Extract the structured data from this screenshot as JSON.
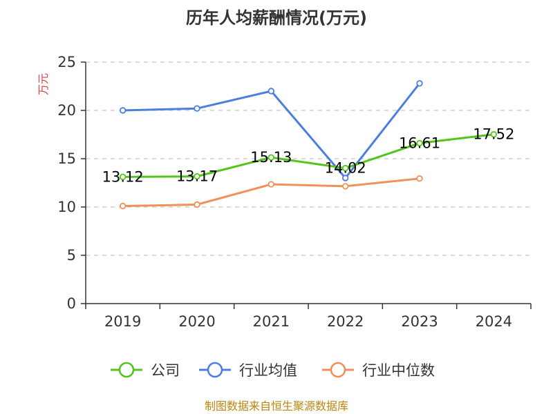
{
  "chart_data": {
    "type": "line",
    "title": "历年人均薪酬情况(万元)",
    "ylabel": "万元",
    "ylim": [
      0,
      25
    ],
    "yticks": [
      "0",
      "5",
      "10",
      "15",
      "20",
      "25"
    ],
    "categories": [
      "2019",
      "2020",
      "2021",
      "2022",
      "2023",
      "2024"
    ],
    "series": [
      {
        "name": "公司",
        "color": "#52c41a",
        "values": [
          13.12,
          13.17,
          15.13,
          14.02,
          16.61,
          17.52
        ],
        "labels": [
          "13.12",
          "13.17",
          "15.13",
          "14.02",
          "16.61",
          "17.52"
        ]
      },
      {
        "name": "行业均值",
        "color": "#4a7fe0",
        "values": [
          20.0,
          20.2,
          22.0,
          13.0,
          22.8,
          null
        ]
      },
      {
        "name": "行业中位数",
        "color": "#f28f5a",
        "values": [
          10.1,
          10.25,
          12.35,
          12.15,
          12.95,
          null
        ]
      }
    ],
    "grid": true,
    "legend": "bottom",
    "source": "制图数据来自恒生聚源数据库",
    "ylabel_color": "#e04040",
    "source_color": "#b8860b"
  }
}
